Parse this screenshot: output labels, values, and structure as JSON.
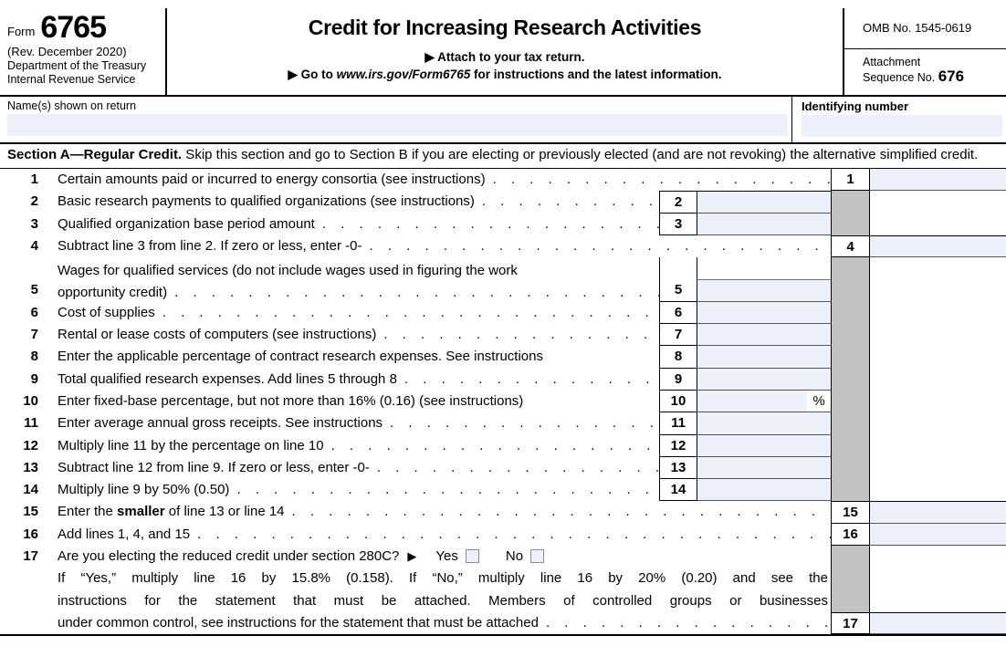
{
  "form": {
    "form_label": "Form",
    "form_number": "6765",
    "revision": "(Rev. December 2020)",
    "agency_line1": "Department of the Treasury",
    "agency_line2": "Internal Revenue Service",
    "title": "Credit for Increasing Research Activities",
    "attach_line": "Attach to your tax return.",
    "goto_pre": "Go to ",
    "goto_url": "www.irs.gov/Form6765",
    "goto_post": " for instructions and the latest information.",
    "omb": "OMB No. 1545-0619",
    "attachment_label": "Attachment",
    "sequence_label": "Sequence No. ",
    "sequence_number": "676"
  },
  "identity": {
    "name_label": "Name(s) shown on return",
    "name_value": "",
    "id_label": "Identifying number",
    "id_value": ""
  },
  "section_a": {
    "heading_bold": "Section A—Regular Credit.",
    "heading_rest": " Skip this section and go to Section B if you are electing or previously elected (and are not revoking) the alternative simplified credit."
  },
  "misc": {
    "dots": ". . . . . . . . . . . . . . . . . . . . . . . . . . . . . . . . . . . . . . . . . . . . . . . .",
    "percent": "%",
    "arrow": "▶"
  },
  "lines": {
    "l1": {
      "num": "1",
      "label": "Certain amounts paid or incurred to energy consortia (see instructions)"
    },
    "l2": {
      "num": "2",
      "label": "Basic research payments to qualified organizations (see instructions)"
    },
    "l3": {
      "num": "3",
      "label": "Qualified organization base period amount"
    },
    "l4": {
      "num": "4",
      "label": "Subtract line 3 from line 2. If zero or less, enter -0-"
    },
    "l5": {
      "num": "5",
      "label_line1": "Wages for qualified services (do not include wages used in figuring the work",
      "label_line2": "opportunity credit)"
    },
    "l6": {
      "num": "6",
      "label": "Cost of supplies"
    },
    "l7": {
      "num": "7",
      "label": "Rental or lease costs of computers (see instructions)"
    },
    "l8": {
      "num": "8",
      "label": "Enter the applicable percentage of contract research expenses. See instructions"
    },
    "l9": {
      "num": "9",
      "label": "Total qualified research expenses. Add lines 5 through 8"
    },
    "l10": {
      "num": "10",
      "label": "Enter fixed-base percentage, but not more than 16% (0.16) (see instructions)"
    },
    "l11": {
      "num": "11",
      "label": "Enter average annual gross receipts. See instructions"
    },
    "l12": {
      "num": "12",
      "label": "Multiply line 11 by the percentage on line 10"
    },
    "l13": {
      "num": "13",
      "label": "Subtract line 12 from line 9. If zero or less, enter -0-"
    },
    "l14": {
      "num": "14",
      "label": "Multiply line 9 by 50% (0.50)"
    },
    "l15": {
      "num": "15",
      "label_pre": "Enter the ",
      "label_bold": "smaller",
      "label_post": " of line 13 or line 14"
    },
    "l16": {
      "num": "16",
      "label": "Add lines 1, 4, and 15"
    },
    "l17": {
      "num": "17",
      "question": "Are you electing the reduced credit under section 280C?",
      "yes_label": "Yes",
      "no_label": "No",
      "text_line2": "If “Yes,” multiply line 16 by 15.8% (0.158). If “No,” multiply line 16 by 20% (0.20) and see the",
      "text_line3": "instructions for the statement that must be attached. Members of controlled groups or businesses",
      "text_line4": "under common control, see instructions for the statement that must be attached"
    }
  },
  "colors": {
    "field_background": "#ecf0fa",
    "shaded_column": "#c2c2c2",
    "border": "#000000"
  }
}
